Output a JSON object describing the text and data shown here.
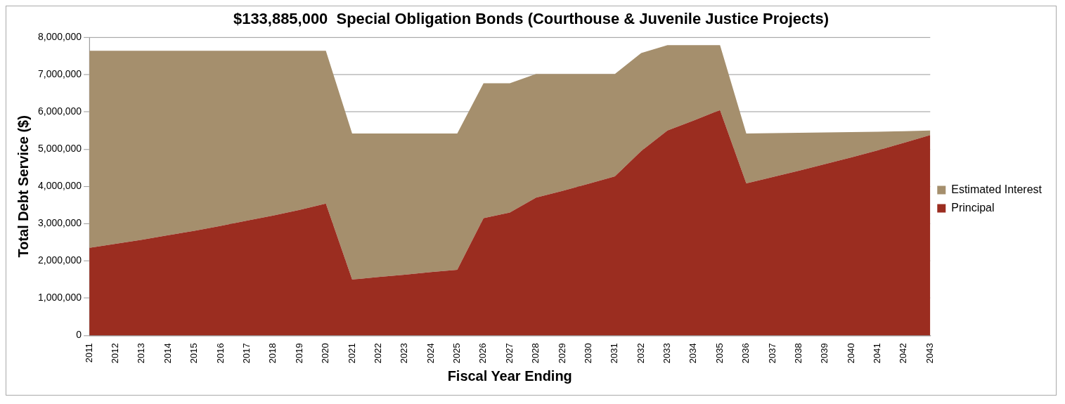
{
  "chart_data": {
    "type": "area",
    "stacked": true,
    "title": "$133,885,000  Special Obligation Bonds (Courthouse & Juvenile Justice Projects)",
    "xlabel": "Fiscal Year Ending",
    "ylabel": "Total Debt Service ($)",
    "categories": [
      "2011",
      "2012",
      "2013",
      "2014",
      "2015",
      "2016",
      "2017",
      "2018",
      "2019",
      "2020",
      "2021",
      "2022",
      "2023",
      "2024",
      "2025",
      "2026",
      "2027",
      "2028",
      "2029",
      "2030",
      "2031",
      "2032",
      "2033",
      "2034",
      "2035",
      "2036",
      "2037",
      "2038",
      "2039",
      "2040",
      "2041",
      "2042",
      "2043"
    ],
    "series": [
      {
        "name": "Principal",
        "color": "#9b2d20",
        "values": [
          2350000,
          2460000,
          2570000,
          2690000,
          2810000,
          2940000,
          3080000,
          3220000,
          3370000,
          3540000,
          1500000,
          1570000,
          1630000,
          1700000,
          1760000,
          3150000,
          3300000,
          3700000,
          3880000,
          4070000,
          4270000,
          4950000,
          5500000,
          5770000,
          6050000,
          4080000,
          4250000,
          4420000,
          4600000,
          4780000,
          4970000,
          5170000,
          5380000
        ]
      },
      {
        "name": "Estimated Interest",
        "color": "#a58f6d",
        "values": [
          5290000,
          5180000,
          5070000,
          4950000,
          4830000,
          4700000,
          4560000,
          4420000,
          4270000,
          4100000,
          3920000,
          3850000,
          3790000,
          3720000,
          3660000,
          3620000,
          3470000,
          3320000,
          3140000,
          2950000,
          2750000,
          2630000,
          2290000,
          2020000,
          1740000,
          1340000,
          1180000,
          1020000,
          850000,
          680000,
          500000,
          310000,
          120000
        ]
      }
    ],
    "ylim": [
      0,
      8000000
    ],
    "yticks": [
      0,
      {
        "value": 1000000,
        "label": "1,000,000"
      },
      {
        "value": 2000000,
        "label": "2,000,000"
      },
      {
        "value": 3000000,
        "label": "3,000,000"
      },
      {
        "value": 4000000,
        "label": "4,000,000"
      },
      {
        "value": 5000000,
        "label": "5,000,000"
      },
      {
        "value": 6000000,
        "label": "6,000,000"
      },
      {
        "value": 7000000,
        "label": "7,000,000"
      },
      {
        "value": 8000000,
        "label": "8,000,000"
      }
    ],
    "grid": "y",
    "legend": "right"
  }
}
